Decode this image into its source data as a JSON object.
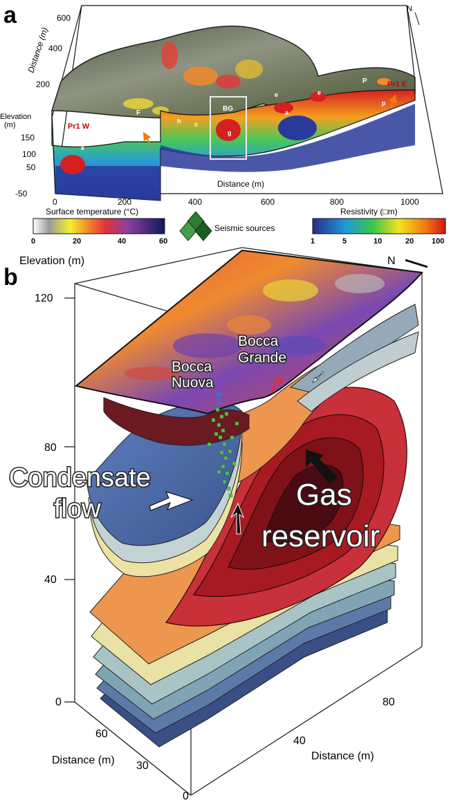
{
  "panel_a": {
    "letter": "a",
    "north": "N",
    "y_axis_label": "Distance (m)",
    "y_ticks": [
      "600",
      "400",
      "200"
    ],
    "elev_label_line1": "Elevation",
    "elev_label_line2": "(m)",
    "elev_ticks": [
      "150",
      "100",
      "50",
      "-50"
    ],
    "x_axis_label": "Distance (m)",
    "x_ticks": [
      "0",
      "200",
      "400",
      "600",
      "800",
      "1000"
    ],
    "profile_labels": {
      "pr1w": "Pr1 W",
      "pr1e": "Pr1 E"
    },
    "feature_labels": {
      "F": "F",
      "BG": "BG",
      "P": "P",
      "a1": "a",
      "a2": "a",
      "e1": "e",
      "e2": "e",
      "e3": "e",
      "h": "h",
      "c": "c",
      "g": "g",
      "p": "p"
    },
    "surface_temp": {
      "title": "Surface temperature (°C)",
      "ticks": [
        "0",
        "20",
        "40",
        "60"
      ]
    },
    "seismic": {
      "label": "Seismic sources"
    },
    "resistivity": {
      "title": "Resistivity (□m)",
      "ticks": [
        "1",
        "5",
        "10",
        "20",
        "100"
      ]
    }
  },
  "panel_b": {
    "letter": "b",
    "north": "N",
    "elevation_label": "Elevation (m)",
    "z_ticks": [
      "120",
      "80",
      "40",
      "0"
    ],
    "bocca_grande_1": "Bocca",
    "bocca_grande_2": "Grande",
    "bocca_nuova_1": "Bocca",
    "bocca_nuova_2": "Nuova",
    "condensate_1": "Condensate",
    "condensate_2": "flow",
    "gas_1": "Gas",
    "gas_2": "reservoir",
    "left_axis_label": "Distance (m)",
    "left_ticks": [
      "60",
      "30",
      "0"
    ],
    "right_axis_label": "Distance (m)",
    "right_ticks": [
      "40",
      "80"
    ]
  },
  "colors": {
    "res_blue": "#2b3f9e",
    "res_red": "#d01616",
    "gas_red": "#a81a22",
    "condensate_blue": "#4a6aa8"
  }
}
